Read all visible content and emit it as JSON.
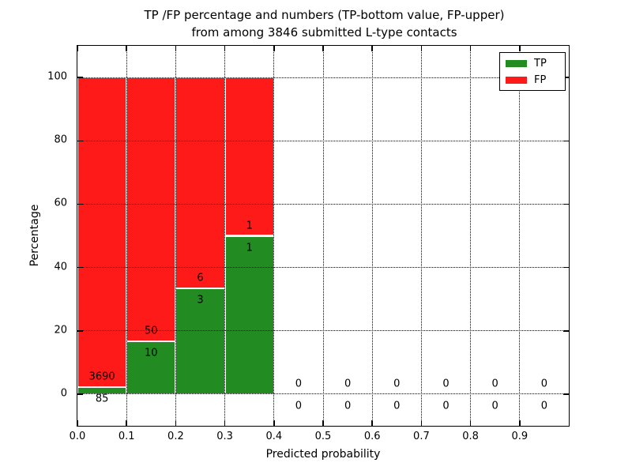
{
  "title": {
    "line1": "TP /FP percentage and numbers (TP-bottom value, FP-upper)",
    "line2": "from among 3846 submitted L-type contacts"
  },
  "axes": {
    "ylabel": "Percentage",
    "xlabel": "Predicted probability",
    "yticks": [
      0,
      20,
      40,
      60,
      80,
      100
    ],
    "xticks": [
      "0.0",
      "0.1",
      "0.2",
      "0.3",
      "0.4",
      "0.5",
      "0.6",
      "0.7",
      "0.8",
      "0.9"
    ],
    "ylim": [
      -10,
      110
    ],
    "xlim": [
      0,
      1
    ],
    "grid": "dotted, drawn above bars"
  },
  "legend": {
    "position": "upper right",
    "items": [
      {
        "label": "TP",
        "color": "#228b22"
      },
      {
        "label": "FP",
        "color": "#ff1a1a"
      }
    ]
  },
  "colors": {
    "tp": "#228b22",
    "fp": "#ff1a1a",
    "bar_edge": "#ffffff",
    "grid": "#000000",
    "background": "#ffffff"
  },
  "chart_data": {
    "type": "bar",
    "stacked": true,
    "normalized_to": 100,
    "title": "TP /FP percentage and numbers (TP-bottom value, FP-upper) from among 3846 submitted L-type contacts",
    "xlabel": "Predicted probability",
    "ylabel": "Percentage",
    "total_contacts": 3846,
    "bins": [
      {
        "range": [
          0.0,
          0.1
        ],
        "tp": 85,
        "fp": 3690,
        "tp_percent": 2.25,
        "fp_percent": 97.75
      },
      {
        "range": [
          0.1,
          0.2
        ],
        "tp": 10,
        "fp": 50,
        "tp_percent": 16.67,
        "fp_percent": 83.33
      },
      {
        "range": [
          0.2,
          0.3
        ],
        "tp": 3,
        "fp": 6,
        "tp_percent": 33.33,
        "fp_percent": 66.67
      },
      {
        "range": [
          0.3,
          0.4
        ],
        "tp": 1,
        "fp": 1,
        "tp_percent": 50.0,
        "fp_percent": 50.0
      },
      {
        "range": [
          0.4,
          0.5
        ],
        "tp": 0,
        "fp": 0,
        "tp_percent": null,
        "fp_percent": null
      },
      {
        "range": [
          0.5,
          0.6
        ],
        "tp": 0,
        "fp": 0,
        "tp_percent": null,
        "fp_percent": null
      },
      {
        "range": [
          0.6,
          0.7
        ],
        "tp": 0,
        "fp": 0,
        "tp_percent": null,
        "fp_percent": null
      },
      {
        "range": [
          0.7,
          0.8
        ],
        "tp": 0,
        "fp": 0,
        "tp_percent": null,
        "fp_percent": null
      },
      {
        "range": [
          0.8,
          0.9
        ],
        "tp": 0,
        "fp": 0,
        "tp_percent": null,
        "fp_percent": null
      },
      {
        "range": [
          0.9,
          1.0
        ],
        "tp": 0,
        "fp": 0,
        "tp_percent": null,
        "fp_percent": null
      }
    ],
    "legend_position": "upper right"
  }
}
